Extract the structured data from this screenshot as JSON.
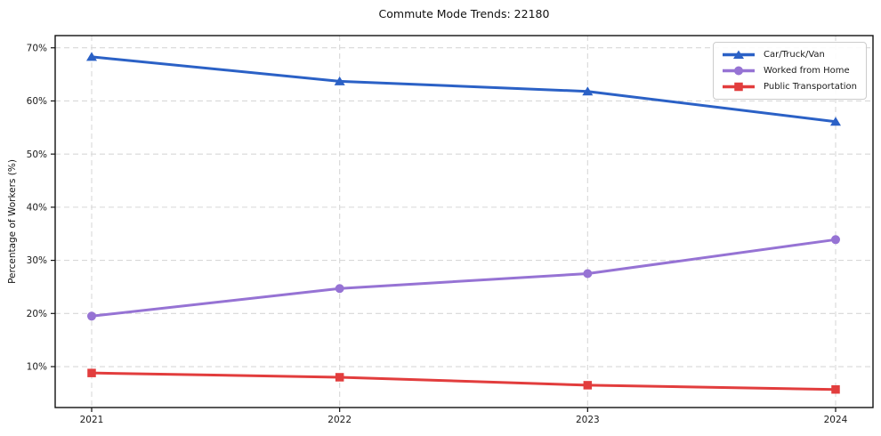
{
  "page": {
    "title": "Commute Mode Trends: 22180"
  },
  "chart_data": {
    "type": "line",
    "title": "Commute Mode Trends: 22180",
    "xlabel": "",
    "ylabel": "Percentage of Workers (%)",
    "categories": [
      2021,
      2022,
      2023,
      2024
    ],
    "x_tick_labels": [
      "2021",
      "2022",
      "2023",
      "2024"
    ],
    "y_ticks": [
      10,
      20,
      30,
      40,
      50,
      60,
      70
    ],
    "y_tick_labels": [
      "10%",
      "20%",
      "30%",
      "40%",
      "50%",
      "60%",
      "70%"
    ],
    "ylim": [
      2.3,
      72.3
    ],
    "grid": true,
    "grid_style": "dashed",
    "legend_position": "upper right",
    "colors": {
      "car_truck_van": "#2b61c6",
      "worked_from_home": "#9673d4",
      "public_transportation": "#e23d3d",
      "grid": "#d8d8d8",
      "spine": "#111111"
    },
    "series": [
      {
        "name": "Car/Truck/Van",
        "color": "#2b61c6",
        "marker": "triangle-up",
        "values": [
          68.3,
          63.7,
          61.8,
          56.1
        ]
      },
      {
        "name": "Worked from Home",
        "color": "#9673d4",
        "marker": "circle",
        "values": [
          19.5,
          24.7,
          27.5,
          33.9
        ]
      },
      {
        "name": "Public Transportation",
        "color": "#e23d3d",
        "marker": "square",
        "values": [
          8.8,
          8.0,
          6.5,
          5.7
        ]
      }
    ]
  }
}
